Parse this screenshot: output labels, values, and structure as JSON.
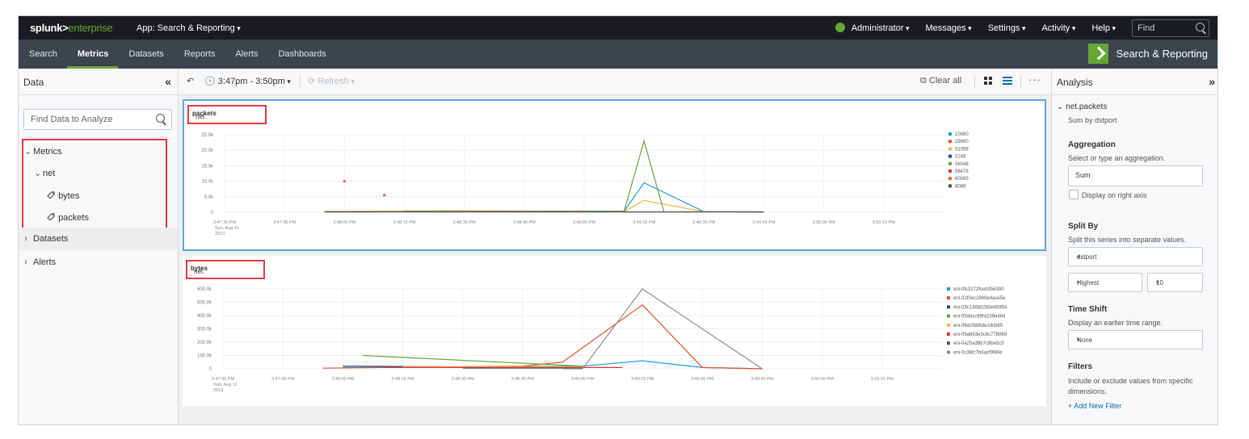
{
  "topbar": {
    "logo_main": "splunk>",
    "logo_ent": "enterprise",
    "app": "App: Search & Reporting",
    "user": "Administrator",
    "messages": "Messages",
    "settings": "Settings",
    "activity": "Activity",
    "help": "Help",
    "find_placeholder": "Find"
  },
  "appbar": {
    "tabs": [
      {
        "label": "Search",
        "active": false
      },
      {
        "label": "Metrics",
        "active": true
      },
      {
        "label": "Datasets",
        "active": false
      },
      {
        "label": "Reports",
        "active": false
      },
      {
        "label": "Alerts",
        "active": false
      },
      {
        "label": "Dashboards",
        "active": false
      }
    ],
    "brand": "Search & Reporting"
  },
  "left": {
    "title": "Data",
    "collapse": "«",
    "search_placeholder": "Find Data to Analyze",
    "metrics": "Metrics",
    "net": "net",
    "bytes": "bytes",
    "packets": "packets",
    "datasets": "Datasets",
    "alerts": "Alerts"
  },
  "toolbar": {
    "time": "3:47pm - 3:50pm",
    "refresh": "Refresh",
    "clear_all": "Clear all",
    "more": "···"
  },
  "chart_data": [
    {
      "type": "line",
      "title_prefix": "net.",
      "title_bold": "packets",
      "y_ticks": [
        "25.0k",
        "20.0k",
        "15.0k",
        "10.0k",
        "5.0k",
        "0"
      ],
      "ylim": [
        0,
        25000
      ],
      "x_ticks": [
        "3:47:30 PM",
        "3:47:45 PM",
        "3:48:00 PM",
        "3:48:15 PM",
        "3:48:30 PM",
        "3:48:45 PM",
        "3:49:00 PM",
        "3:49:15 PM",
        "3:49:30 PM",
        "3:49:45 PM",
        "3:50:00 PM",
        "3:50:15 PM"
      ],
      "x_first_extra": [
        "Sun, Aug 11",
        "2013"
      ],
      "x_sec": [
        0,
        15,
        30,
        45,
        60,
        75,
        90,
        105,
        120,
        135,
        150,
        165
      ],
      "series": [
        {
          "name": "10080",
          "color": "#1f9bd6",
          "points": [
            [
              25,
              200
            ],
            [
              55,
              400
            ],
            [
              100,
              300
            ],
            [
              105,
              9500
            ],
            [
              120,
              200
            ],
            [
              135,
              100
            ]
          ]
        },
        {
          "name": "29960",
          "color": "#e0562a",
          "points": [
            [
              40,
              5500
            ]
          ]
        },
        {
          "name": "31058",
          "color": "#f7b441",
          "points": [
            [
              25,
              300
            ],
            [
              55,
              500
            ],
            [
              100,
              200
            ],
            [
              105,
              3800
            ],
            [
              120,
              200
            ],
            [
              135,
              100
            ]
          ]
        },
        {
          "name": "3148",
          "color": "#1d4f8a",
          "points": [
            [
              25,
              100
            ],
            [
              135,
              100
            ]
          ]
        },
        {
          "name": "56048",
          "color": "#65a637",
          "points": [
            [
              45,
              300
            ],
            [
              100,
              300
            ],
            [
              105,
              23000
            ],
            [
              110,
              100
            ]
          ]
        },
        {
          "name": "58478",
          "color": "#d9363e",
          "points": [
            [
              55,
              200
            ],
            [
              90,
              200
            ]
          ]
        },
        {
          "name": "60065",
          "color": "#ec6230",
          "points": [
            [
              30,
              10000
            ]
          ]
        },
        {
          "name": "8088",
          "color": "#555555",
          "points": [
            [
              25,
              150
            ],
            [
              135,
              150
            ]
          ]
        }
      ]
    },
    {
      "type": "line",
      "title_prefix": "net.",
      "title_bold": "bytes",
      "y_ticks": [
        "600.0k",
        "500.0k",
        "400.0k",
        "300.0k",
        "200.0k",
        "100.0k",
        "0"
      ],
      "ylim": [
        0,
        600000
      ],
      "x_ticks": [
        "3:47:30 PM",
        "3:47:45 PM",
        "3:48:00 PM",
        "3:48:15 PM",
        "3:48:30 PM",
        "3:48:45 PM",
        "3:49:00 PM",
        "3:49:15 PM",
        "3:49:30 PM",
        "3:49:45 PM",
        "3:50:00 PM",
        "3:50:15 PM"
      ],
      "x_first_extra": [
        "Sun, Aug 11",
        "2013"
      ],
      "x_sec": [
        0,
        15,
        30,
        45,
        60,
        75,
        90,
        105,
        120,
        135,
        150,
        165
      ],
      "series": [
        {
          "name": "eni-0fc3272fceb356390",
          "color": "#1f9bd6",
          "points": [
            [
              30,
              10000
            ],
            [
              90,
              20000
            ],
            [
              105,
              60000
            ],
            [
              120,
              10000
            ],
            [
              135,
              0
            ]
          ]
        },
        {
          "name": "eni-01f0ec2880e4ase5e",
          "color": "#e0562a",
          "points": [
            [
              25,
              5000
            ],
            [
              75,
              20000
            ],
            [
              85,
              50000
            ],
            [
              105,
              480000
            ],
            [
              120,
              10000
            ],
            [
              135,
              0
            ]
          ]
        },
        {
          "name": "eni-03c136b0283e85954",
          "color": "#1d4f8a",
          "points": [
            [
              30,
              20000
            ],
            [
              90,
              10000
            ]
          ]
        },
        {
          "name": "eni-05dasc99fa239e464",
          "color": "#65a637",
          "points": [
            [
              35,
              100000
            ],
            [
              90,
              20000
            ]
          ]
        },
        {
          "name": "eni-06dcfb86de1dcb65",
          "color": "#f7b441",
          "points": [
            [
              45,
              15000
            ],
            [
              90,
              15000
            ]
          ]
        },
        {
          "name": "eni-09a663e3c6c778989",
          "color": "#d9363e",
          "points": [
            [
              40,
              10000
            ],
            [
              100,
              10000
            ]
          ]
        },
        {
          "name": "eni-0a25a39b7c8be5c5",
          "color": "#555555",
          "points": [
            [
              60,
              5000
            ],
            [
              90,
              5000
            ]
          ]
        },
        {
          "name": "eni-0c36fc7b4acf9f89e",
          "color": "#8a8f9a",
          "points": [
            [
              85,
              0
            ],
            [
              90,
              0
            ],
            [
              105,
              600000
            ],
            [
              135,
              0
            ]
          ]
        }
      ]
    }
  ],
  "right": {
    "title": "Analysis",
    "collapse": "»",
    "metric": "net.packets",
    "metric_sub": "Sum by dstport",
    "agg_h": "Aggregation",
    "agg_sub": "Select or type an aggregation.",
    "agg_val": "Sum",
    "display_right": "Display on right axis",
    "split_h": "Split By",
    "split_sub": "Split this series into separate values.",
    "split_val": "dstport",
    "highest": "Highest",
    "count": "10",
    "shift_h": "Time Shift",
    "shift_sub": "Display an earlier time range.",
    "shift_val": "None",
    "filters_h": "Filters",
    "filters_sub": "Include or exclude values from specific dimensions.",
    "add_filter": "+ Add New Filter"
  }
}
